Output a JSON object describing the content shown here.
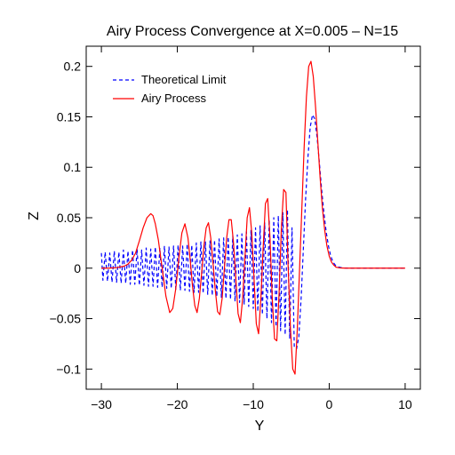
{
  "chart_data": {
    "type": "line",
    "title": "Airy Process Convergence at X=0.005 – N=15",
    "xlabel": "Y",
    "ylabel": "Z",
    "xlim": [
      -32,
      12
    ],
    "ylim": [
      -0.12,
      0.22
    ],
    "xticks": [
      -30,
      -20,
      -10,
      0,
      10
    ],
    "xtick_labels": [
      "−30",
      "−20",
      "−10",
      "0",
      "10"
    ],
    "yticks": [
      -0.1,
      -0.05,
      0,
      0.05,
      0.1,
      0.15,
      0.2
    ],
    "ytick_labels": [
      "−0.1",
      "−0.05",
      "0",
      "0.05",
      "0.1",
      "0.15",
      "0.2"
    ],
    "grid": false,
    "legend_position": "top-left",
    "series": [
      {
        "name": "Theoretical Limit",
        "color": "#0000ff",
        "style": "dashed",
        "x": [
          -30.0,
          -29.8,
          -29.5,
          -29.2,
          -28.9,
          -28.6,
          -28.3,
          -28.0,
          -27.7,
          -27.4,
          -27.1,
          -26.8,
          -26.5,
          -26.2,
          -25.9,
          -25.6,
          -25.3,
          -25.0,
          -24.7,
          -24.4,
          -24.1,
          -23.8,
          -23.5,
          -23.2,
          -22.9,
          -22.6,
          -22.3,
          -22.0,
          -21.7,
          -21.4,
          -21.1,
          -20.8,
          -20.5,
          -20.2,
          -19.9,
          -19.6,
          -19.3,
          -19.0,
          -18.7,
          -18.4,
          -18.1,
          -17.8,
          -17.5,
          -17.2,
          -16.9,
          -16.6,
          -16.3,
          -16.0,
          -15.7,
          -15.4,
          -15.1,
          -14.8,
          -14.5,
          -14.2,
          -13.9,
          -13.6,
          -13.3,
          -13.0,
          -12.7,
          -12.4,
          -12.1,
          -11.8,
          -11.5,
          -11.2,
          -10.9,
          -10.6,
          -10.3,
          -10.0,
          -9.7,
          -9.4,
          -9.1,
          -8.8,
          -8.5,
          -8.2,
          -7.9,
          -7.6,
          -7.3,
          -7.0,
          -6.7,
          -6.4,
          -6.1,
          -5.8,
          -5.5,
          -5.2,
          -4.9,
          -4.6,
          -4.3,
          -4.0,
          -3.7,
          -3.4,
          -3.1,
          -2.8,
          -2.5,
          -2.2,
          -1.9,
          -1.6,
          -1.3,
          -1.0,
          -0.7,
          -0.4,
          -0.1,
          0.2,
          0.5,
          0.8,
          1.1,
          1.4,
          1.7,
          2.0,
          2.5,
          3.0,
          4.0,
          5.0,
          6.0,
          8.0,
          10.0
        ],
        "y": [
          0.015,
          -0.012,
          0.016,
          -0.013,
          0.015,
          -0.014,
          0.017,
          -0.014,
          0.016,
          -0.015,
          0.018,
          -0.015,
          0.017,
          -0.016,
          0.018,
          -0.016,
          0.019,
          -0.017,
          0.018,
          -0.017,
          0.02,
          -0.018,
          0.019,
          -0.018,
          0.021,
          -0.019,
          0.02,
          -0.019,
          0.022,
          -0.02,
          0.021,
          -0.02,
          0.022,
          -0.021,
          0.023,
          -0.022,
          0.022,
          -0.022,
          0.024,
          -0.023,
          0.023,
          -0.024,
          0.025,
          -0.024,
          0.026,
          -0.025,
          0.026,
          -0.026,
          0.027,
          -0.027,
          0.028,
          -0.028,
          0.029,
          -0.029,
          0.03,
          -0.03,
          0.031,
          -0.031,
          0.032,
          -0.033,
          0.033,
          -0.034,
          0.034,
          -0.036,
          0.036,
          -0.038,
          0.038,
          -0.04,
          0.04,
          -0.043,
          0.042,
          -0.046,
          0.045,
          -0.05,
          0.048,
          -0.054,
          0.05,
          -0.058,
          0.052,
          -0.062,
          0.055,
          -0.066,
          0.058,
          -0.07,
          0.04,
          -0.078,
          -0.08,
          -0.068,
          -0.03,
          0.02,
          0.07,
          0.11,
          0.14,
          0.152,
          0.148,
          0.13,
          0.105,
          0.078,
          0.055,
          0.036,
          0.022,
          0.012,
          0.006,
          0.003,
          0.0015,
          0.0008,
          0.0004,
          0.0002,
          0.0001,
          0.0,
          0.0,
          0.0,
          0.0,
          0.0,
          0.0
        ]
      },
      {
        "name": "Airy Process",
        "color": "#ff0000",
        "style": "solid",
        "x": [
          -30.0,
          -29.0,
          -28.0,
          -27.0,
          -26.5,
          -26.0,
          -25.5,
          -25.0,
          -24.5,
          -24.0,
          -23.5,
          -23.2,
          -22.9,
          -22.5,
          -22.0,
          -21.5,
          -21.0,
          -20.6,
          -20.2,
          -19.8,
          -19.4,
          -19.0,
          -18.6,
          -18.3,
          -18.0,
          -17.7,
          -17.4,
          -17.1,
          -16.8,
          -16.5,
          -16.2,
          -15.9,
          -15.6,
          -15.3,
          -15.0,
          -14.7,
          -14.4,
          -14.1,
          -13.8,
          -13.5,
          -13.2,
          -12.9,
          -12.6,
          -12.3,
          -12.0,
          -11.7,
          -11.4,
          -11.1,
          -10.8,
          -10.5,
          -10.2,
          -9.9,
          -9.6,
          -9.3,
          -9.0,
          -8.7,
          -8.4,
          -8.1,
          -7.8,
          -7.5,
          -7.2,
          -6.9,
          -6.6,
          -6.3,
          -6.0,
          -5.7,
          -5.4,
          -5.1,
          -4.8,
          -4.5,
          -4.2,
          -3.9,
          -3.6,
          -3.3,
          -3.0,
          -2.7,
          -2.4,
          -2.1,
          -1.8,
          -1.5,
          -1.2,
          -0.9,
          -0.6,
          -0.3,
          0.0,
          0.3,
          0.6,
          0.9,
          1.2,
          1.5,
          1.8,
          2.1,
          2.5,
          3.0,
          3.5,
          4.0,
          5.0,
          6.0,
          8.0,
          10.0
        ],
        "y": [
          0.0,
          0.0,
          0.0005,
          0.002,
          0.004,
          0.008,
          0.015,
          0.027,
          0.04,
          0.05,
          0.054,
          0.052,
          0.044,
          0.028,
          0.0,
          -0.028,
          -0.044,
          -0.04,
          -0.02,
          0.01,
          0.035,
          0.044,
          0.03,
          0.008,
          -0.018,
          -0.037,
          -0.044,
          -0.03,
          -0.005,
          0.022,
          0.04,
          0.045,
          0.03,
          0.005,
          -0.022,
          -0.043,
          -0.046,
          -0.03,
          0.0,
          0.03,
          0.048,
          0.048,
          0.025,
          -0.01,
          -0.045,
          -0.054,
          -0.03,
          0.01,
          0.05,
          0.06,
          0.035,
          -0.01,
          -0.055,
          -0.065,
          -0.03,
          0.02,
          0.064,
          0.069,
          0.03,
          -0.03,
          -0.07,
          -0.072,
          -0.025,
          0.04,
          0.078,
          0.075,
          0.0,
          -0.06,
          -0.1,
          -0.105,
          -0.06,
          0.0,
          0.06,
          0.12,
          0.17,
          0.2,
          0.205,
          0.19,
          0.16,
          0.125,
          0.09,
          0.06,
          0.038,
          0.022,
          0.012,
          0.006,
          0.003,
          0.001,
          0.0005,
          0.0002,
          0.0001,
          0.0,
          0.0,
          0.0,
          0.0,
          0.0,
          0.0,
          0.0,
          0.0,
          0.0
        ]
      }
    ]
  }
}
